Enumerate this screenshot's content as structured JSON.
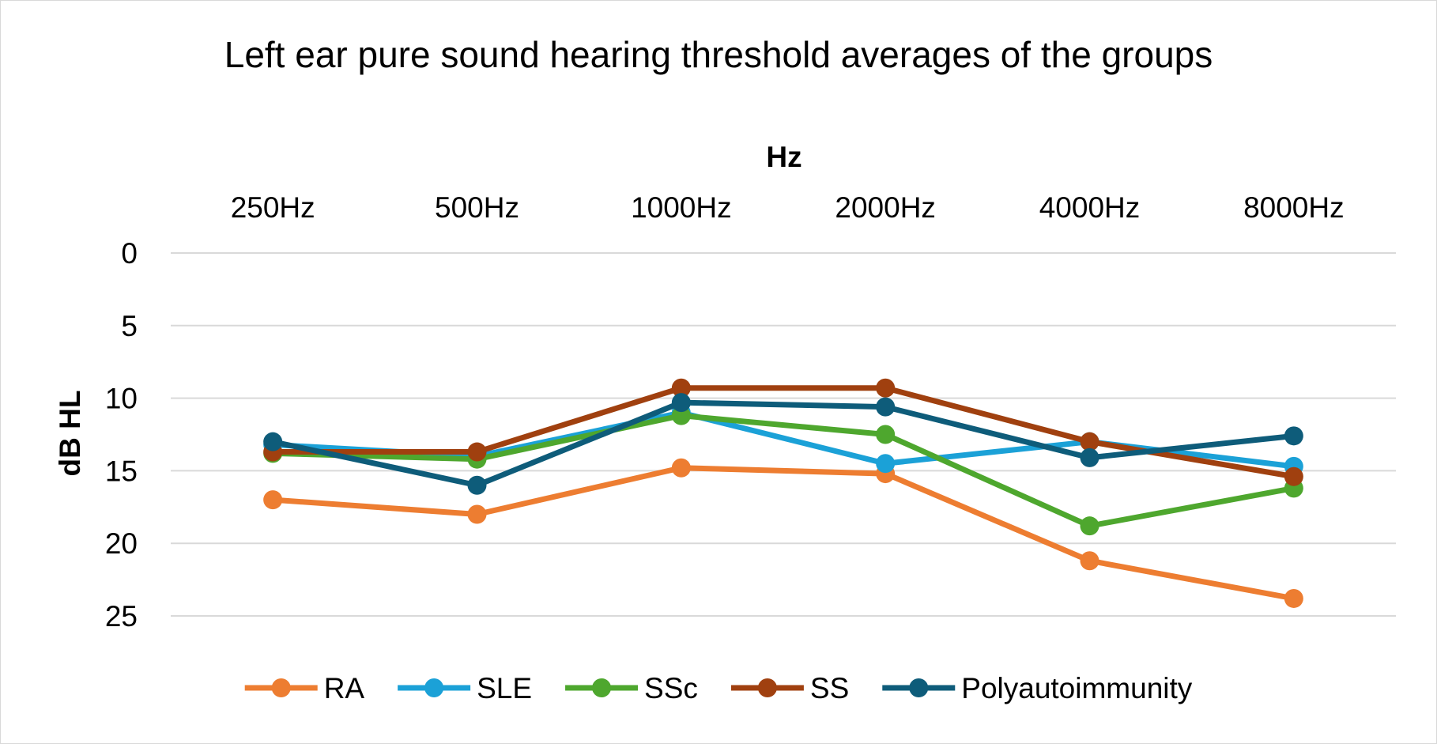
{
  "chart_data": {
    "type": "line",
    "title": "Left ear pure sound hearing threshold averages of the groups",
    "xlabel": "Hz",
    "ylabel": "dB HL",
    "categories": [
      "250Hz",
      "500Hz",
      "1000Hz",
      "2000Hz",
      "4000Hz",
      "8000Hz"
    ],
    "y_ticks": [
      0,
      5,
      10,
      15,
      20,
      25
    ],
    "ylim": [
      0,
      28.5
    ],
    "y_reversed": true,
    "x_axis_position": "top",
    "grid": true,
    "legend_position": "bottom",
    "series": [
      {
        "name": "RA",
        "color": "#ED7D31",
        "values": [
          17.0,
          18.0,
          14.8,
          15.2,
          21.2,
          23.8
        ]
      },
      {
        "name": "SLE",
        "color": "#1BA1D7",
        "values": [
          13.2,
          14.0,
          11.0,
          14.5,
          13.0,
          14.7
        ]
      },
      {
        "name": "SSc",
        "color": "#4EA72E",
        "values": [
          13.8,
          14.2,
          11.2,
          12.5,
          18.8,
          16.2
        ]
      },
      {
        "name": "SS",
        "color": "#A0400F",
        "values": [
          13.7,
          13.7,
          9.3,
          9.3,
          13.0,
          15.4
        ]
      },
      {
        "name": "Polyautoimmunity",
        "color": "#0E5C7A",
        "values": [
          13.0,
          16.0,
          10.3,
          10.6,
          14.1,
          12.6
        ]
      }
    ]
  }
}
